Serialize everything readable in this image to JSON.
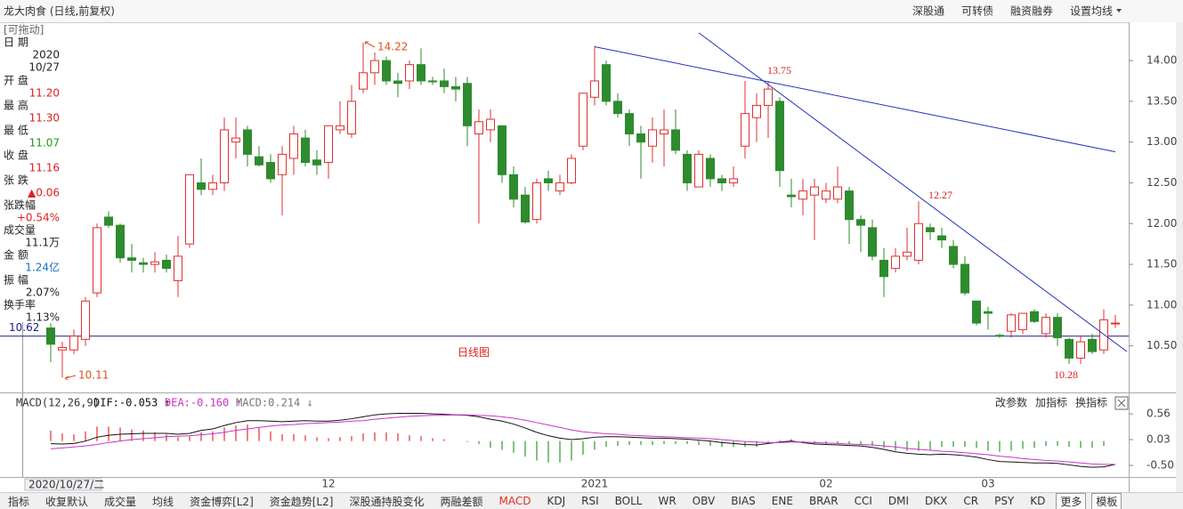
{
  "toolbar": {
    "title": "龙大肉食 (日线,前复权)",
    "items": [
      "深股通",
      "可转债",
      "融资融券",
      "设置均线"
    ]
  },
  "info_panel": {
    "header": "[可拖动]",
    "date_label": "日 期",
    "date": [
      "2020",
      "10/27"
    ],
    "rows": [
      {
        "label": "开 盘",
        "value": "11.20",
        "color": "#e02020"
      },
      {
        "label": "最 高",
        "value": "11.30",
        "color": "#e02020"
      },
      {
        "label": "最 低",
        "value": "11.07",
        "color": "#1a9a1a"
      },
      {
        "label": "收 盘",
        "value": "11.16",
        "color": "#e02020"
      },
      {
        "label": "张 跌",
        "value": "▲0.06",
        "color": "#e02020"
      },
      {
        "label": "张跌幅",
        "value": "+0.54%",
        "color": "#e02020"
      },
      {
        "label": "成交量",
        "value": "11.1万",
        "color": "#222222"
      },
      {
        "label": "金 额",
        "value": "1.24亿",
        "color": "#1a70c0"
      },
      {
        "label": "振 幅",
        "value": "2.07%",
        "color": "#222222"
      },
      {
        "label": "换手率",
        "value": "1.13%",
        "color": "#222222"
      }
    ]
  },
  "chart_data": [
    {
      "type": "candlestick",
      "up_color": "#e03030",
      "down_color": "#2e8b2e",
      "categories": [
        null,
        null,
        null,
        null,
        null,
        null,
        null,
        null,
        null,
        null,
        null,
        null,
        null,
        null,
        null,
        null,
        null,
        null,
        null,
        null,
        null,
        null,
        null,
        null,
        "12",
        null,
        null,
        null,
        null,
        null,
        null,
        null,
        null,
        null,
        null,
        null,
        null,
        null,
        null,
        null,
        null,
        null,
        null,
        null,
        null,
        null,
        null,
        "2021",
        null,
        null,
        null,
        null,
        null,
        null,
        null,
        null,
        null,
        null,
        null,
        null,
        null,
        null,
        null,
        null,
        null,
        null,
        null,
        "02",
        null,
        null,
        null,
        null,
        null,
        null,
        null,
        null,
        null,
        null,
        null,
        null,
        null,
        "03",
        null,
        null,
        null,
        null,
        null,
        null,
        null,
        null,
        null,
        null,
        null
      ],
      "open": [
        10.72,
        10.45,
        10.45,
        10.58,
        11.15,
        12.08,
        11.98,
        11.58,
        11.52,
        11.5,
        11.55,
        11.3,
        11.75,
        12.5,
        12.42,
        12.5,
        13.0,
        13.15,
        12.82,
        12.75,
        12.6,
        12.8,
        13.05,
        12.78,
        12.75,
        13.15,
        13.1,
        13.65,
        13.85,
        14.0,
        13.75,
        13.75,
        13.95,
        13.75,
        13.75,
        13.68,
        13.72,
        13.1,
        13.15,
        13.2,
        12.6,
        12.35,
        12.05,
        12.55,
        12.4,
        12.5,
        12.95,
        13.55,
        13.95,
        13.5,
        13.35,
        13.1,
        12.95,
        13.1,
        13.15,
        12.85,
        12.45,
        12.8,
        12.55,
        12.5,
        12.95,
        13.3,
        13.45,
        13.5,
        12.35,
        12.3,
        12.35,
        12.3,
        12.3,
        12.4,
        12.05,
        11.95,
        11.55,
        11.45,
        11.6,
        11.55,
        11.95,
        11.85,
        11.72,
        11.5,
        11.05,
        10.92,
        10.63,
        10.68,
        10.7,
        10.92,
        10.65,
        10.85,
        10.58,
        10.35,
        10.58,
        10.45,
        10.78
      ],
      "high": [
        10.78,
        10.55,
        10.7,
        11.1,
        12.0,
        12.15,
        12.0,
        11.75,
        11.58,
        11.65,
        11.62,
        11.85,
        12.6,
        12.8,
        12.6,
        13.3,
        13.3,
        13.2,
        12.95,
        12.85,
        12.95,
        13.2,
        13.15,
        12.9,
        13.2,
        13.5,
        13.7,
        14.22,
        14.1,
        14.05,
        13.85,
        14.0,
        14.15,
        13.8,
        13.9,
        13.8,
        13.8,
        13.4,
        13.4,
        13.2,
        12.7,
        12.45,
        12.55,
        12.65,
        12.6,
        12.85,
        13.6,
        14.18,
        14.0,
        13.6,
        13.4,
        13.2,
        13.3,
        13.4,
        13.4,
        12.9,
        12.9,
        12.85,
        12.6,
        12.7,
        13.75,
        13.6,
        13.75,
        13.55,
        12.55,
        12.55,
        12.55,
        12.5,
        12.7,
        12.45,
        12.1,
        12.05,
        11.7,
        11.7,
        11.95,
        12.27,
        12.0,
        11.95,
        11.8,
        11.6,
        11.05,
        10.98,
        10.65,
        10.9,
        10.9,
        10.95,
        10.9,
        10.9,
        10.6,
        10.62,
        10.65,
        10.95,
        10.88
      ],
      "low": [
        10.3,
        10.11,
        10.4,
        10.5,
        11.1,
        11.95,
        11.52,
        11.4,
        11.4,
        11.4,
        11.4,
        11.1,
        11.7,
        12.35,
        12.35,
        12.4,
        12.8,
        12.7,
        12.7,
        12.5,
        12.1,
        12.6,
        12.7,
        12.6,
        12.55,
        13.1,
        13.05,
        13.6,
        13.7,
        13.7,
        13.55,
        13.65,
        13.7,
        13.7,
        13.6,
        13.5,
        12.95,
        12.0,
        13.0,
        12.5,
        12.2,
        12.0,
        12.0,
        12.4,
        12.35,
        12.48,
        12.9,
        13.45,
        13.45,
        13.3,
        12.95,
        12.55,
        12.75,
        12.7,
        12.85,
        12.4,
        12.45,
        12.45,
        12.4,
        12.45,
        12.8,
        13.0,
        13.05,
        12.45,
        12.2,
        12.1,
        11.8,
        12.25,
        12.25,
        11.75,
        11.65,
        11.55,
        11.1,
        11.4,
        11.55,
        11.5,
        11.8,
        11.7,
        11.45,
        11.12,
        10.75,
        10.7,
        10.6,
        10.6,
        10.65,
        10.78,
        10.6,
        10.5,
        10.28,
        10.28,
        10.4,
        10.4,
        10.72
      ],
      "close": [
        10.52,
        10.48,
        10.62,
        11.05,
        11.95,
        11.98,
        11.58,
        11.55,
        11.5,
        11.53,
        11.45,
        11.6,
        12.6,
        12.42,
        12.5,
        13.15,
        13.05,
        12.85,
        12.72,
        12.55,
        12.85,
        13.1,
        12.75,
        12.72,
        13.2,
        13.2,
        13.5,
        13.85,
        14.0,
        13.75,
        13.72,
        13.95,
        13.75,
        13.74,
        13.68,
        13.65,
        13.2,
        13.25,
        13.28,
        12.6,
        12.3,
        12.02,
        12.5,
        12.5,
        12.5,
        12.8,
        13.6,
        13.75,
        13.5,
        13.35,
        13.1,
        13.0,
        13.15,
        13.15,
        12.9,
        12.5,
        12.85,
        12.55,
        12.5,
        12.55,
        13.35,
        13.45,
        13.65,
        12.65,
        12.33,
        12.4,
        12.45,
        12.4,
        12.45,
        12.05,
        11.98,
        11.6,
        11.35,
        11.6,
        11.65,
        12.0,
        11.9,
        11.8,
        11.5,
        11.15,
        10.78,
        10.9,
        10.62,
        10.88,
        10.9,
        10.8,
        10.85,
        10.6,
        10.35,
        10.55,
        10.43,
        10.82,
        10.78
      ],
      "ylim": [
        9.94,
        14.47
      ],
      "yticks": [
        {
          "value": 10.5,
          "label": "10.50"
        },
        {
          "value": 11,
          "label": "11.00"
        },
        {
          "value": 11.5,
          "label": "11.50"
        },
        {
          "value": 12,
          "label": "12.00"
        },
        {
          "value": 12.5,
          "label": "12.50"
        },
        {
          "value": 13,
          "label": "13.00"
        },
        {
          "value": 13.5,
          "label": "13.50"
        },
        {
          "value": 14,
          "label": "14.00"
        }
      ],
      "hline": {
        "value": 10.62,
        "label": "10.62",
        "color": "#1a1a8c"
      },
      "lines": [
        {
          "color": "#2233bb",
          "x": [
            47,
            92
          ],
          "y": [
            14.17,
            12.88
          ]
        },
        {
          "color": "#2233bb",
          "x": [
            56,
            93
          ],
          "y": [
            14.34,
            10.43
          ]
        }
      ],
      "annotations": [
        {
          "text": "14.22",
          "style": "small"
        },
        {
          "text": "10.11",
          "style": "small"
        },
        {
          "text": "13.75",
          "style": "large"
        },
        {
          "text": "12.27",
          "style": "large"
        },
        {
          "text": "10.28",
          "style": "large"
        },
        {
          "text": "日线图",
          "style": "large"
        }
      ]
    },
    {
      "type": "macd",
      "title": "MACD(12,26,9)",
      "readouts": [
        {
          "text": "DIF:-0.053 ↑",
          "color": "#111111"
        },
        {
          "text": "DEA:-0.160 ↑",
          "color": "#cc33cc"
        },
        {
          "text": "MACD:0.214 ↓",
          "color": "#777777"
        }
      ],
      "buttons": [
        "改参数",
        "加指标",
        "换指标"
      ],
      "ylim": [
        -0.72,
        0.69
      ],
      "yticks": [
        0.56,
        0.03,
        {
          "value": -0.5,
          "label": "-0.50"
        }
      ],
      "up_color": "#e03030",
      "down_color": "#2a9a2a",
      "series": [
        {
          "name": "DIF",
          "color": "#111111",
          "values": [
            -0.053,
            -0.06,
            -0.05,
            0.0,
            0.08,
            0.12,
            0.14,
            0.15,
            0.16,
            0.16,
            0.16,
            0.14,
            0.16,
            0.22,
            0.25,
            0.32,
            0.38,
            0.42,
            0.42,
            0.41,
            0.4,
            0.41,
            0.42,
            0.41,
            0.41,
            0.43,
            0.46,
            0.5,
            0.54,
            0.56,
            0.57,
            0.57,
            0.57,
            0.56,
            0.55,
            0.54,
            0.53,
            0.5,
            0.45,
            0.41,
            0.35,
            0.27,
            0.18,
            0.11,
            0.06,
            0.03,
            0.05,
            0.08,
            0.09,
            0.09,
            0.08,
            0.07,
            0.06,
            0.06,
            0.05,
            0.04,
            0.02,
            0.0,
            -0.03,
            -0.05,
            -0.07,
            -0.08,
            -0.05,
            -0.02,
            0.0,
            -0.03,
            -0.06,
            -0.07,
            -0.08,
            -0.09,
            -0.1,
            -0.13,
            -0.17,
            -0.22,
            -0.25,
            -0.27,
            -0.28,
            -0.27,
            -0.28,
            -0.3,
            -0.33,
            -0.38,
            -0.42,
            -0.43,
            -0.44,
            -0.45,
            -0.45,
            -0.46,
            -0.49,
            -0.52,
            -0.54,
            -0.53,
            -0.48
          ]
        },
        {
          "name": "DEA",
          "color": "#cc33cc",
          "values": [
            -0.16,
            -0.14,
            -0.12,
            -0.1,
            -0.07,
            -0.03,
            0.0,
            0.03,
            0.05,
            0.07,
            0.09,
            0.1,
            0.11,
            0.13,
            0.15,
            0.18,
            0.22,
            0.25,
            0.28,
            0.31,
            0.33,
            0.34,
            0.36,
            0.37,
            0.38,
            0.39,
            0.41,
            0.42,
            0.45,
            0.47,
            0.49,
            0.51,
            0.52,
            0.53,
            0.53,
            0.54,
            0.54,
            0.53,
            0.52,
            0.5,
            0.47,
            0.43,
            0.38,
            0.33,
            0.28,
            0.23,
            0.19,
            0.17,
            0.15,
            0.14,
            0.12,
            0.11,
            0.1,
            0.09,
            0.08,
            0.07,
            0.06,
            0.05,
            0.03,
            0.01,
            -0.01,
            -0.02,
            -0.03,
            -0.03,
            -0.02,
            -0.02,
            -0.03,
            -0.04,
            -0.05,
            -0.06,
            -0.07,
            -0.08,
            -0.1,
            -0.12,
            -0.15,
            -0.17,
            -0.19,
            -0.21,
            -0.22,
            -0.24,
            -0.26,
            -0.28,
            -0.31,
            -0.33,
            -0.36,
            -0.38,
            -0.4,
            -0.41,
            -0.43,
            -0.45,
            -0.47,
            -0.48,
            -0.48
          ]
        },
        {
          "name": "MACD",
          "values": [
            0.214,
            0.16,
            0.14,
            0.2,
            0.3,
            0.3,
            0.28,
            0.24,
            0.22,
            0.18,
            0.14,
            0.08,
            0.1,
            0.18,
            0.2,
            0.28,
            0.32,
            0.34,
            0.28,
            0.2,
            0.14,
            0.14,
            0.12,
            0.08,
            0.06,
            0.08,
            0.1,
            0.16,
            0.18,
            0.18,
            0.16,
            0.12,
            0.1,
            0.06,
            0.04,
            0.0,
            -0.02,
            -0.06,
            -0.14,
            -0.18,
            -0.24,
            -0.32,
            -0.4,
            -0.44,
            -0.44,
            -0.4,
            -0.28,
            -0.18,
            -0.12,
            -0.1,
            -0.08,
            -0.08,
            -0.08,
            -0.06,
            -0.06,
            -0.06,
            -0.08,
            -0.1,
            -0.12,
            -0.12,
            -0.12,
            -0.12,
            -0.04,
            0.02,
            0.04,
            -0.02,
            -0.06,
            -0.06,
            -0.06,
            -0.06,
            -0.06,
            -0.1,
            -0.14,
            -0.2,
            -0.2,
            -0.2,
            -0.18,
            -0.12,
            -0.12,
            -0.12,
            -0.14,
            -0.2,
            -0.22,
            -0.2,
            -0.16,
            -0.14,
            -0.1,
            -0.1,
            -0.12,
            -0.14,
            -0.14,
            -0.1,
            0.0
          ]
        }
      ]
    }
  ],
  "footer": {
    "date": "2020/10/27/二",
    "tabs": [
      "指标",
      "收复默认",
      "成交量",
      "均线",
      "资金博弈[L2]",
      "资金趋势[L2]",
      "深股通持股变化",
      "两融差额",
      "MACD",
      "KDJ",
      "RSI",
      "BOLL",
      "WR",
      "OBV",
      "BIAS",
      "ENE",
      "BRAR",
      "CCI",
      "DMI",
      "DKX",
      "CR",
      "PSY",
      "KD",
      "更多",
      "模板"
    ],
    "active_tab": "MACD"
  }
}
